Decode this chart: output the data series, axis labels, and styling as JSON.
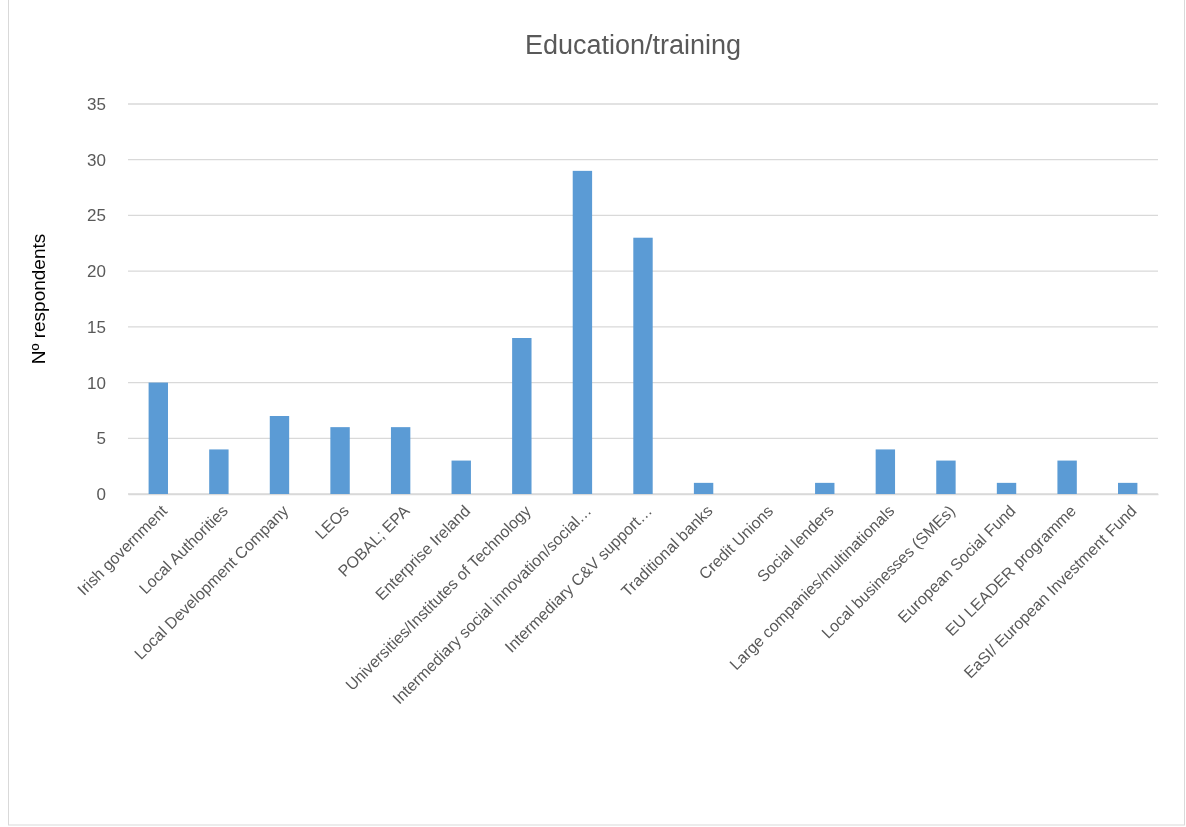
{
  "chart_data": {
    "type": "bar",
    "title": "Education/training",
    "ylabel": "Nº respondents",
    "categories": [
      "Irish government",
      "Local Authorities",
      "Local Development Company",
      "LEOs",
      "POBAL; EPA",
      "Enterprise Ireland",
      "Universities/Institutes of Technology",
      "Intermediary social innovation/social…",
      "Intermediary C&V support…",
      "Traditional banks",
      "Credit Unions",
      "Social lenders",
      "Large companies/multinationals",
      "Local businesses (SMEs)",
      "European Social Fund",
      "EU LEADER programme",
      "EaSI/ European Investment Fund"
    ],
    "values": [
      10,
      4,
      7,
      6,
      6,
      3,
      14,
      29,
      23,
      1,
      0,
      1,
      4,
      3,
      1,
      3,
      1
    ],
    "color": "#5b9bd5",
    "ylim": [
      0,
      35
    ],
    "yticks": [
      0,
      5,
      10,
      15,
      20,
      25,
      30,
      35
    ],
    "grid": "y"
  }
}
